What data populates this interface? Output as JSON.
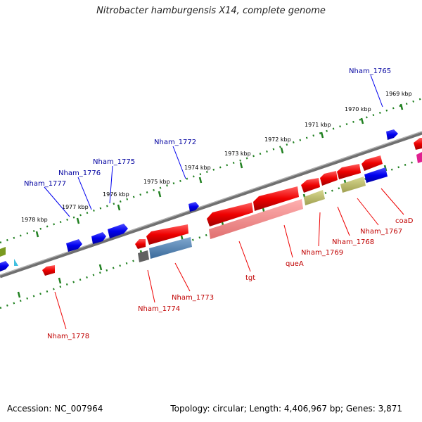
{
  "title": "Nitrobacter hamburgensis X14, complete genome",
  "footer": {
    "accession": "Accession: NC_007964",
    "summary": "Topology: circular; Length: 4,406,967 bp; Genes: 3,871"
  },
  "kbp_ticks": [
    "1969 kbp",
    "1970 kbp",
    "1971 kbp",
    "1972 kbp",
    "1973 kbp",
    "1974 kbp",
    "1975 kbp",
    "1976 kbp",
    "1977 kbp",
    "1978 kbp"
  ],
  "genes_top": [
    "Nham_1765",
    "Nham_1772",
    "Nham_1775",
    "Nham_1776",
    "Nham_1777"
  ],
  "genes_bottom": [
    "coaD",
    "Nham_1767",
    "Nham_1768",
    "Nham_1769",
    "queA",
    "tgt",
    "Nham_1773",
    "Nham_1774",
    "Nham_1778"
  ],
  "colors": {
    "forward_gene": "#0000ee",
    "reverse_gene": "#ee0000",
    "backbone": "#808080",
    "tick": "#208020",
    "label_forward": "#0000a0",
    "label_reverse": "#c00000"
  }
}
